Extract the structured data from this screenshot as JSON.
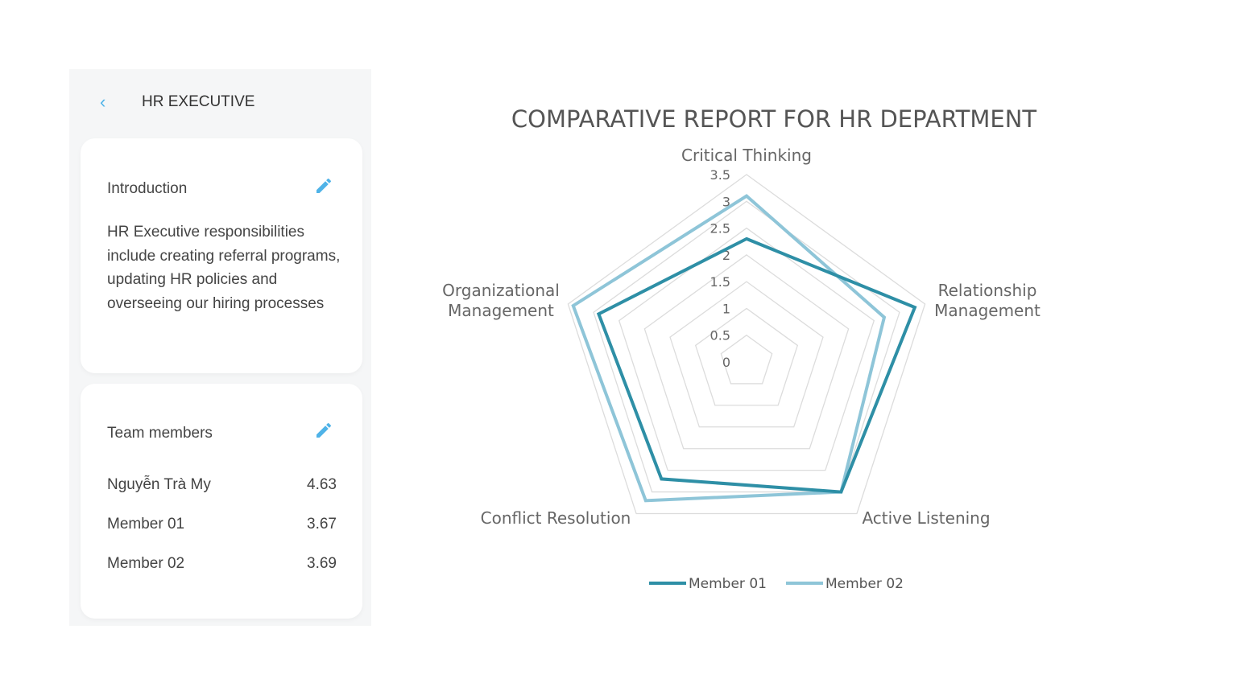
{
  "header": {
    "back_icon": "chevron-left-icon",
    "title": "HR EXECUTIVE"
  },
  "introduction": {
    "title": "Introduction",
    "edit_icon": "pencil-icon",
    "text": "HR Executive responsibilities include creating referral programs, updating HR policies and overseeing our hiring processes"
  },
  "team": {
    "title": "Team members",
    "edit_icon": "pencil-icon",
    "members": [
      {
        "name": "Nguyễn Trà My",
        "score": "4.63"
      },
      {
        "name": "Member 01",
        "score": "3.67"
      },
      {
        "name": "Member 02",
        "score": "3.69"
      }
    ]
  },
  "colors": {
    "accent": "#4fb3e8",
    "member01": "#2e8fa6",
    "member02": "#8ec5d8"
  },
  "chart_data": {
    "type": "radar",
    "title": "COMPARATIVE REPORT FOR HR DEPARTMENT",
    "categories": [
      "Critical Thinking",
      "Relationship Management",
      "Active Listening",
      "Conflict Resolution",
      "Organizational Management"
    ],
    "ticks": [
      "0",
      "0.5",
      "1",
      "1.5",
      "2",
      "2.5",
      "3",
      "3.5"
    ],
    "range": [
      0,
      3.5
    ],
    "grid": true,
    "legend": "bottom",
    "series": [
      {
        "name": "Member 01",
        "values": [
          2.3,
          3.3,
          3.0,
          2.7,
          2.9
        ]
      },
      {
        "name": "Member 02",
        "values": [
          3.1,
          2.7,
          3.0,
          3.2,
          3.4
        ]
      }
    ]
  }
}
